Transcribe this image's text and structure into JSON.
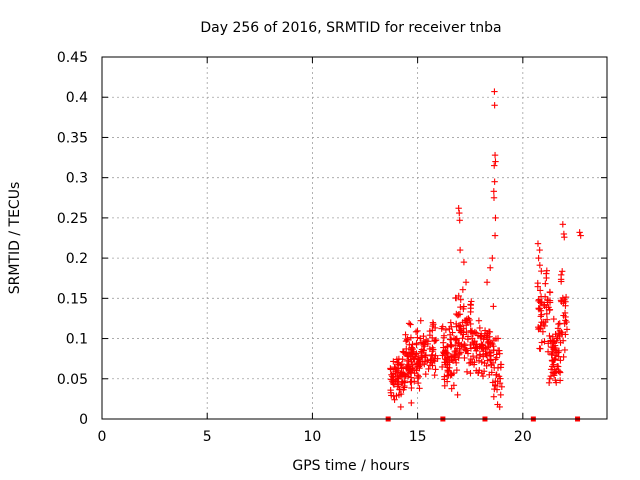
{
  "chart_data": {
    "type": "scatter",
    "title": "Day 256 of 2016, SRMTID for receiver tnba",
    "xlabel": "GPS time / hours",
    "ylabel": "SRMTID / TECUs",
    "xlim": [
      0,
      24
    ],
    "ylim": [
      0,
      0.45
    ],
    "xticks": [
      0,
      5,
      10,
      15,
      20
    ],
    "xtick_labels": [
      "0",
      "5",
      "10",
      "15",
      "20"
    ],
    "yticks": [
      0,
      0.05,
      0.1,
      0.15,
      0.2,
      0.25,
      0.3,
      0.35,
      0.4,
      0.45
    ],
    "ytick_labels": [
      "0",
      "0.05",
      "0.1",
      "0.15",
      "0.2",
      "0.25",
      "0.3",
      "0.35",
      "0.4",
      "0.45"
    ],
    "grid": true,
    "marker": "+",
    "color": "#ff0000",
    "series": [
      {
        "name": "SRMTID",
        "clusters": [
          {
            "x_range": [
              13.7,
              14.4
            ],
            "y_range": [
              0.02,
              0.085
            ],
            "count": 70
          },
          {
            "x_range": [
              14.4,
              15.1
            ],
            "y_range": [
              0.03,
              0.12
            ],
            "count": 80
          },
          {
            "x_range": [
              15.1,
              15.9
            ],
            "y_range": [
              0.04,
              0.125
            ],
            "count": 60
          },
          {
            "x_range": [
              16.1,
              16.8
            ],
            "y_range": [
              0.03,
              0.13
            ],
            "count": 70
          },
          {
            "x_range": [
              16.8,
              17.6
            ],
            "y_range": [
              0.05,
              0.17
            ],
            "count": 80
          },
          {
            "x_range": [
              17.6,
              18.5
            ],
            "y_range": [
              0.05,
              0.13
            ],
            "count": 80
          },
          {
            "x_range": [
              18.5,
              19.0
            ],
            "y_range": [
              0.02,
              0.11
            ],
            "count": 35
          },
          {
            "x_range": [
              20.7,
              21.3
            ],
            "y_range": [
              0.08,
              0.2
            ],
            "count": 55
          },
          {
            "x_range": [
              21.3,
              21.8
            ],
            "y_range": [
              0.04,
              0.13
            ],
            "count": 60
          },
          {
            "x_range": [
              21.8,
              22.1
            ],
            "y_range": [
              0.07,
              0.2
            ],
            "count": 25
          }
        ],
        "points": [
          [
            16.95,
            0.262
          ],
          [
            16.98,
            0.256
          ],
          [
            17.0,
            0.247
          ],
          [
            17.02,
            0.21
          ],
          [
            18.65,
            0.407
          ],
          [
            18.66,
            0.39
          ],
          [
            18.68,
            0.328
          ],
          [
            18.7,
            0.32
          ],
          [
            18.64,
            0.315
          ],
          [
            18.66,
            0.295
          ],
          [
            18.62,
            0.283
          ],
          [
            18.63,
            0.275
          ],
          [
            18.7,
            0.25
          ],
          [
            18.68,
            0.228
          ],
          [
            18.45,
            0.188
          ],
          [
            18.55,
            0.2
          ],
          [
            20.72,
            0.218
          ],
          [
            20.8,
            0.21
          ],
          [
            20.75,
            0.2
          ],
          [
            21.9,
            0.242
          ],
          [
            21.95,
            0.23
          ],
          [
            21.97,
            0.226
          ],
          [
            22.7,
            0.232
          ],
          [
            22.75,
            0.228
          ],
          [
            17.3,
            0.17
          ],
          [
            17.2,
            0.195
          ],
          [
            18.3,
            0.17
          ],
          [
            18.6,
            0.14
          ],
          [
            14.7,
            0.02
          ],
          [
            14.2,
            0.015
          ],
          [
            18.8,
            0.018
          ],
          [
            18.9,
            0.015
          ],
          [
            19.0,
            0.04
          ],
          [
            18.95,
            0.03
          ],
          [
            16.9,
            0.03
          ],
          [
            21.25,
            0.045
          ],
          [
            21.28,
            0.05
          ],
          [
            15.95,
            0.075
          ]
        ]
      },
      {
        "name": "markers-at-zero",
        "x": [
          13.6,
          16.2,
          18.2,
          20.5,
          22.6
        ],
        "y": [
          0,
          0,
          0,
          0,
          0
        ]
      }
    ]
  }
}
